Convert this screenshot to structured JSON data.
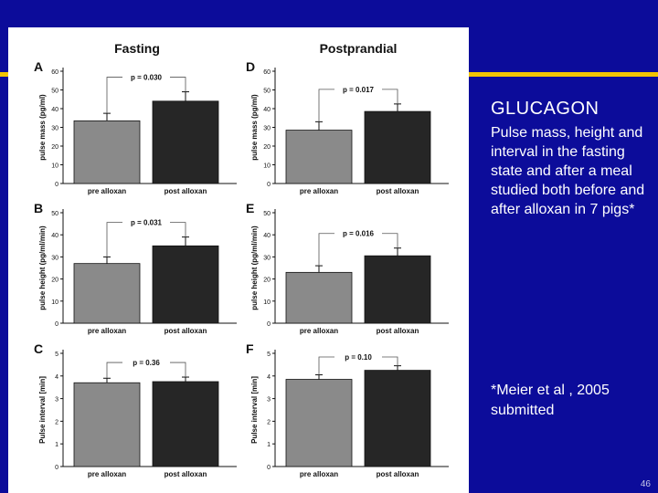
{
  "slide": {
    "title": "GLUCAGON",
    "description": "Pulse mass, height and interval in the fasting state and after a meal studied both before and after alloxan in 7 pigs*",
    "reference": "*Meier et al , 2005 submitted",
    "page_number": "46"
  },
  "figure": {
    "column_titles": [
      "Fasting",
      "Postprandial"
    ]
  },
  "colors": {
    "pre": "#8a8a8a",
    "post": "#262626",
    "background": "#0c0c9a",
    "accent": "#f2c400"
  },
  "chart_data": [
    {
      "type": "bar",
      "panel": "A",
      "condition": "Fasting",
      "ylabel": "pulse mass (pg/ml)",
      "categories": [
        "pre alloxan",
        "post alloxan"
      ],
      "values": [
        33.5,
        44
      ],
      "errors": [
        4,
        5
      ],
      "ylim": [
        0,
        60
      ],
      "yticks": [
        0,
        10,
        20,
        30,
        40,
        50,
        60
      ],
      "annotation": "p = 0.030"
    },
    {
      "type": "bar",
      "panel": "B",
      "condition": "Fasting",
      "ylabel": "pulse height (pg/ml/min)",
      "categories": [
        "pre alloxan",
        "post alloxan"
      ],
      "values": [
        27,
        35
      ],
      "errors": [
        3,
        4
      ],
      "ylim": [
        0,
        50
      ],
      "yticks": [
        0,
        10,
        20,
        30,
        40,
        50
      ],
      "annotation": "p = 0.031"
    },
    {
      "type": "bar",
      "panel": "C",
      "condition": "Fasting",
      "ylabel": "Pulse interval [min]",
      "categories": [
        "pre alloxan",
        "post alloxan"
      ],
      "values": [
        3.7,
        3.75
      ],
      "errors": [
        0.2,
        0.2
      ],
      "ylim": [
        0,
        5
      ],
      "yticks": [
        0,
        1,
        2,
        3,
        4,
        5
      ],
      "annotation": "p = 0.36"
    },
    {
      "type": "bar",
      "panel": "D",
      "condition": "Postprandial",
      "ylabel": "pulse mass (pg/ml)",
      "categories": [
        "pre alloxan",
        "post alloxan"
      ],
      "values": [
        28.5,
        38.5
      ],
      "errors": [
        4.5,
        4
      ],
      "ylim": [
        0,
        60
      ],
      "yticks": [
        0,
        10,
        20,
        30,
        40,
        50,
        60
      ],
      "annotation": "p = 0.017"
    },
    {
      "type": "bar",
      "panel": "E",
      "condition": "Postprandial",
      "ylabel": "pulse height (pg/ml/min)",
      "categories": [
        "pre alloxan",
        "post alloxan"
      ],
      "values": [
        23,
        30.5
      ],
      "errors": [
        3,
        3.5
      ],
      "ylim": [
        0,
        50
      ],
      "yticks": [
        0,
        10,
        20,
        30,
        40,
        50
      ],
      "annotation": "p = 0.016"
    },
    {
      "type": "bar",
      "panel": "F",
      "condition": "Postprandial",
      "ylabel": "Pulse interval [min]",
      "categories": [
        "pre alloxan",
        "post alloxan"
      ],
      "values": [
        3.85,
        4.25
      ],
      "errors": [
        0.2,
        0.2
      ],
      "ylim": [
        0,
        5
      ],
      "yticks": [
        0,
        1,
        2,
        3,
        4,
        5
      ],
      "annotation": "p = 0.10"
    }
  ]
}
